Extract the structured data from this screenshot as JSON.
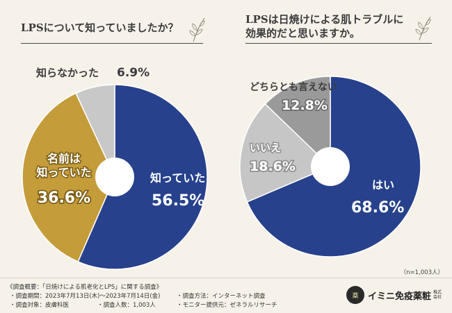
{
  "chart_data": [
    {
      "type": "pie",
      "title": "LPSについて知っていましたか？",
      "slices": [
        {
          "label": "知っていた",
          "value": 56.5,
          "value_text": "56.5%",
          "color": "#27418c"
        },
        {
          "label_lines": [
            "名前は",
            "知っていた"
          ],
          "value": 36.6,
          "value_text": "36.6%",
          "color": "#c49c3a"
        },
        {
          "label": "知らなかった",
          "value": 6.9,
          "value_text": "6.9%",
          "color": "#c8c8c8"
        }
      ]
    },
    {
      "type": "pie",
      "title_lines": [
        "LPSは日焼けによる肌トラブルに",
        "効果的だと思いますか。"
      ],
      "slices": [
        {
          "label": "はい",
          "value": 68.6,
          "value_text": "68.6%",
          "color": "#27418c"
        },
        {
          "label": "いいえ",
          "value": 18.6,
          "value_text": "18.6%",
          "color": "#c6c6c6"
        },
        {
          "label": "どちらとも言えない",
          "value": 12.8,
          "value_text": "12.8%",
          "color": "#9a9a9a"
        }
      ],
      "sample_size": "（n=1,003人）"
    }
  ],
  "footer": {
    "survey_title": "《調査概要：「日焼けによる肌老化とLPS」に関する調査》",
    "period": "・調査期間：2023年7月13日(木)～2023年7月14日(金)",
    "method": "・調査方法：インターネット調査",
    "target": "・調査対象：皮膚科医",
    "count": "・調査人数：1,003人",
    "provider": "・モニター提供元：ゼネラルリサーチ"
  },
  "brand": {
    "name": "イミニ免疫薬粧",
    "sub": "株式会社",
    "mark": "薬"
  }
}
